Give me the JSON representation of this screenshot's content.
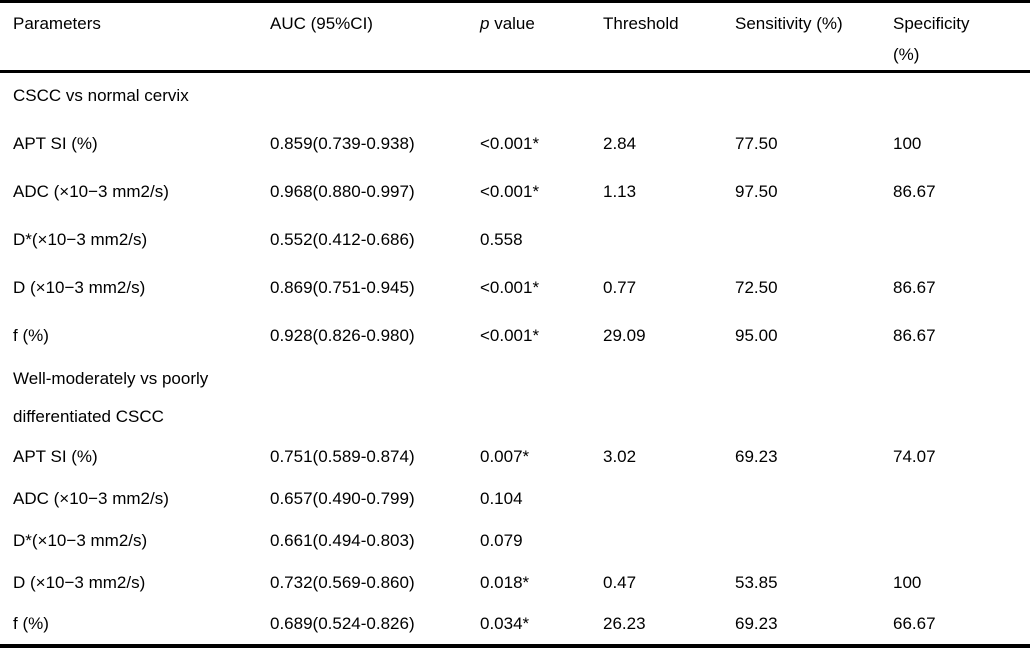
{
  "header": {
    "parameters": "Parameters",
    "auc": "AUC (95%CI)",
    "p_italic": "p",
    "p_rest": "value",
    "threshold": "Threshold",
    "sensitivity": "Sensitivity (%)",
    "specificity_line1": "Specificity",
    "specificity_line2": "(%)"
  },
  "sections": [
    {
      "title_lines": [
        "CSCC vs normal cervix"
      ],
      "rows": [
        {
          "parameter": "APT SI (%)",
          "auc": "0.859(0.739-0.938)",
          "p": "<0.001*",
          "threshold": "2.84",
          "sensitivity": "77.50",
          "specificity": "100"
        },
        {
          "parameter": "ADC (×10−3 mm2/s)",
          "auc": "0.968(0.880-0.997)",
          "p": "<0.001*",
          "threshold": "1.13",
          "sensitivity": "97.50",
          "specificity": "86.67"
        },
        {
          "parameter": "D*(×10−3 mm2/s)",
          "auc": "0.552(0.412-0.686)",
          "p": "0.558",
          "threshold": "",
          "sensitivity": "",
          "specificity": ""
        },
        {
          "parameter": "D (×10−3 mm2/s)",
          "auc": "0.869(0.751-0.945)",
          "p": "<0.001*",
          "threshold": "0.77",
          "sensitivity": "72.50",
          "specificity": "86.67"
        },
        {
          "parameter": "f (%)",
          "auc": "0.928(0.826-0.980)",
          "p": "<0.001*",
          "threshold": "29.09",
          "sensitivity": "95.00",
          "specificity": "86.67"
        }
      ]
    },
    {
      "title_lines": [
        "Well-moderately vs poorly",
        "differentiated CSCC"
      ],
      "rows": [
        {
          "parameter": "APT SI (%)",
          "auc": "0.751(0.589-0.874)",
          "p": "0.007*",
          "threshold": "3.02",
          "sensitivity": "69.23",
          "specificity": "74.07"
        },
        {
          "parameter": "ADC (×10−3 mm2/s)",
          "auc": "0.657(0.490-0.799)",
          "p": "0.104",
          "threshold": "",
          "sensitivity": "",
          "specificity": ""
        },
        {
          "parameter": "D*(×10−3 mm2/s)",
          "auc": "0.661(0.494-0.803)",
          "p": "0.079",
          "threshold": "",
          "sensitivity": "",
          "specificity": ""
        },
        {
          "parameter": "D (×10−3 mm2/s)",
          "auc": "0.732(0.569-0.860)",
          "p": "0.018*",
          "threshold": "0.47",
          "sensitivity": "53.85",
          "specificity": "100"
        },
        {
          "parameter": "f (%)",
          "auc": "0.689(0.524-0.826)",
          "p": "0.034*",
          "threshold": "26.23",
          "sensitivity": "69.23",
          "specificity": "66.67"
        }
      ]
    }
  ],
  "colors": {
    "text": "#000000",
    "background": "#ffffff",
    "border": "#000000"
  }
}
